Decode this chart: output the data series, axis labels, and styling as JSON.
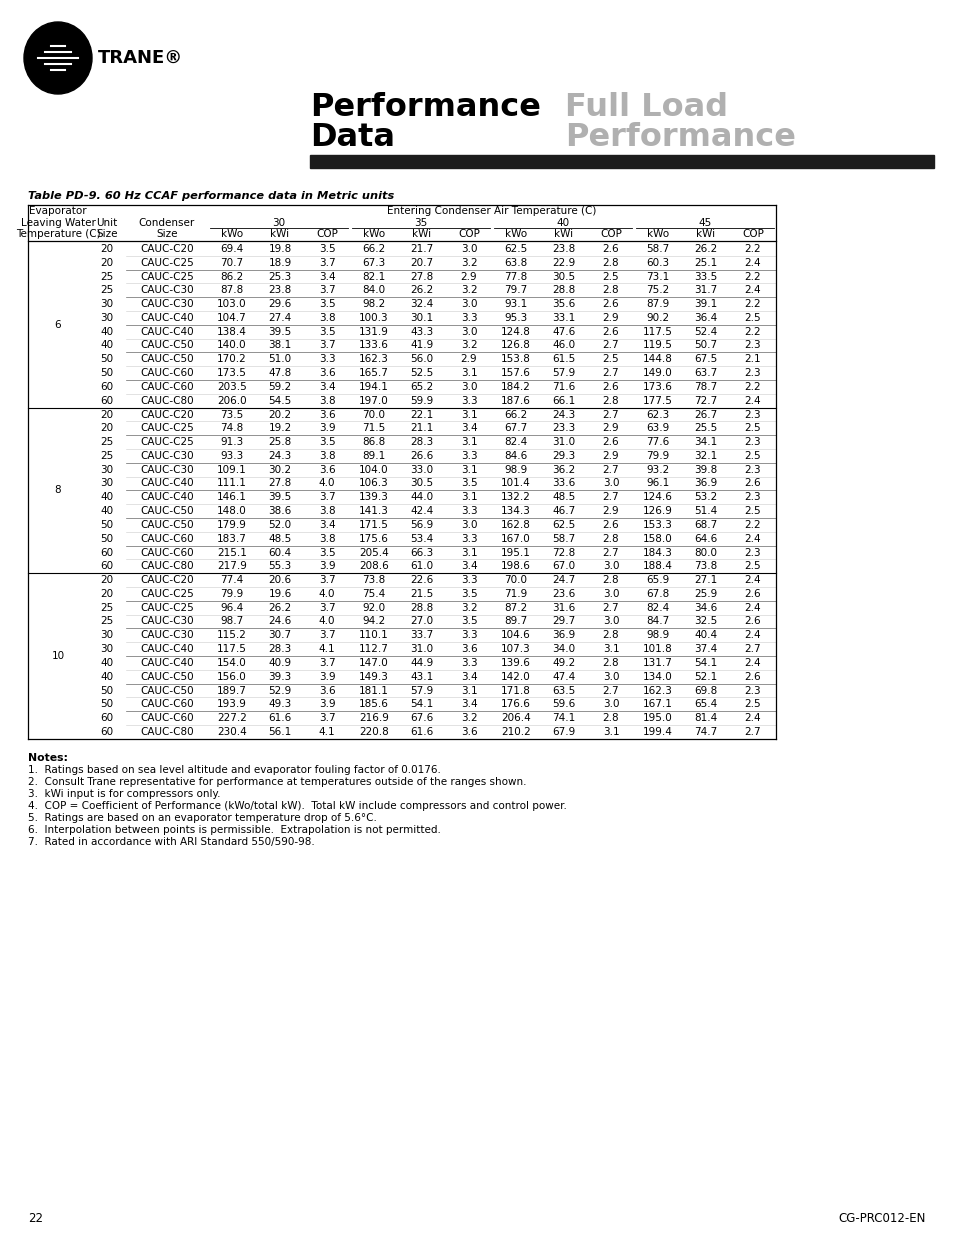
{
  "title_left_1": "Performance",
  "title_left_2": "Data",
  "title_right_1": "Full Load",
  "title_right_2": "Performance",
  "table_title": "Table PD-9. 60 Hz CCAF performance data in Metric units",
  "data": [
    [
      "6",
      "20",
      "CAUC-C20",
      "69.4",
      "19.8",
      "3.5",
      "66.2",
      "21.7",
      "3.0",
      "62.5",
      "23.8",
      "2.6",
      "58.7",
      "26.2",
      "2.2"
    ],
    [
      "",
      "20",
      "CAUC-C25",
      "70.7",
      "18.9",
      "3.7",
      "67.3",
      "20.7",
      "3.2",
      "63.8",
      "22.9",
      "2.8",
      "60.3",
      "25.1",
      "2.4"
    ],
    [
      "",
      "25",
      "CAUC-C25",
      "86.2",
      "25.3",
      "3.4",
      "82.1",
      "27.8",
      "2.9",
      "77.8",
      "30.5",
      "2.5",
      "73.1",
      "33.5",
      "2.2"
    ],
    [
      "",
      "25",
      "CAUC-C30",
      "87.8",
      "23.8",
      "3.7",
      "84.0",
      "26.2",
      "3.2",
      "79.7",
      "28.8",
      "2.8",
      "75.2",
      "31.7",
      "2.4"
    ],
    [
      "",
      "30",
      "CAUC-C30",
      "103.0",
      "29.6",
      "3.5",
      "98.2",
      "32.4",
      "3.0",
      "93.1",
      "35.6",
      "2.6",
      "87.9",
      "39.1",
      "2.2"
    ],
    [
      "",
      "30",
      "CAUC-C40",
      "104.7",
      "27.4",
      "3.8",
      "100.3",
      "30.1",
      "3.3",
      "95.3",
      "33.1",
      "2.9",
      "90.2",
      "36.4",
      "2.5"
    ],
    [
      "",
      "40",
      "CAUC-C40",
      "138.4",
      "39.5",
      "3.5",
      "131.9",
      "43.3",
      "3.0",
      "124.8",
      "47.6",
      "2.6",
      "117.5",
      "52.4",
      "2.2"
    ],
    [
      "",
      "40",
      "CAUC-C50",
      "140.0",
      "38.1",
      "3.7",
      "133.6",
      "41.9",
      "3.2",
      "126.8",
      "46.0",
      "2.7",
      "119.5",
      "50.7",
      "2.3"
    ],
    [
      "",
      "50",
      "CAUC-C50",
      "170.2",
      "51.0",
      "3.3",
      "162.3",
      "56.0",
      "2.9",
      "153.8",
      "61.5",
      "2.5",
      "144.8",
      "67.5",
      "2.1"
    ],
    [
      "",
      "50",
      "CAUC-C60",
      "173.5",
      "47.8",
      "3.6",
      "165.7",
      "52.5",
      "3.1",
      "157.6",
      "57.9",
      "2.7",
      "149.0",
      "63.7",
      "2.3"
    ],
    [
      "",
      "60",
      "CAUC-C60",
      "203.5",
      "59.2",
      "3.4",
      "194.1",
      "65.2",
      "3.0",
      "184.2",
      "71.6",
      "2.6",
      "173.6",
      "78.7",
      "2.2"
    ],
    [
      "",
      "60",
      "CAUC-C80",
      "206.0",
      "54.5",
      "3.8",
      "197.0",
      "59.9",
      "3.3",
      "187.6",
      "66.1",
      "2.8",
      "177.5",
      "72.7",
      "2.4"
    ],
    [
      "8",
      "20",
      "CAUC-C20",
      "73.5",
      "20.2",
      "3.6",
      "70.0",
      "22.1",
      "3.1",
      "66.2",
      "24.3",
      "2.7",
      "62.3",
      "26.7",
      "2.3"
    ],
    [
      "",
      "20",
      "CAUC-C25",
      "74.8",
      "19.2",
      "3.9",
      "71.5",
      "21.1",
      "3.4",
      "67.7",
      "23.3",
      "2.9",
      "63.9",
      "25.5",
      "2.5"
    ],
    [
      "",
      "25",
      "CAUC-C25",
      "91.3",
      "25.8",
      "3.5",
      "86.8",
      "28.3",
      "3.1",
      "82.4",
      "31.0",
      "2.6",
      "77.6",
      "34.1",
      "2.3"
    ],
    [
      "",
      "25",
      "CAUC-C30",
      "93.3",
      "24.3",
      "3.8",
      "89.1",
      "26.6",
      "3.3",
      "84.6",
      "29.3",
      "2.9",
      "79.9",
      "32.1",
      "2.5"
    ],
    [
      "",
      "30",
      "CAUC-C30",
      "109.1",
      "30.2",
      "3.6",
      "104.0",
      "33.0",
      "3.1",
      "98.9",
      "36.2",
      "2.7",
      "93.2",
      "39.8",
      "2.3"
    ],
    [
      "",
      "30",
      "CAUC-C40",
      "111.1",
      "27.8",
      "4.0",
      "106.3",
      "30.5",
      "3.5",
      "101.4",
      "33.6",
      "3.0",
      "96.1",
      "36.9",
      "2.6"
    ],
    [
      "",
      "40",
      "CAUC-C40",
      "146.1",
      "39.5",
      "3.7",
      "139.3",
      "44.0",
      "3.1",
      "132.2",
      "48.5",
      "2.7",
      "124.6",
      "53.2",
      "2.3"
    ],
    [
      "",
      "40",
      "CAUC-C50",
      "148.0",
      "38.6",
      "3.8",
      "141.3",
      "42.4",
      "3.3",
      "134.3",
      "46.7",
      "2.9",
      "126.9",
      "51.4",
      "2.5"
    ],
    [
      "",
      "50",
      "CAUC-C50",
      "179.9",
      "52.0",
      "3.4",
      "171.5",
      "56.9",
      "3.0",
      "162.8",
      "62.5",
      "2.6",
      "153.3",
      "68.7",
      "2.2"
    ],
    [
      "",
      "50",
      "CAUC-C60",
      "183.7",
      "48.5",
      "3.8",
      "175.6",
      "53.4",
      "3.3",
      "167.0",
      "58.7",
      "2.8",
      "158.0",
      "64.6",
      "2.4"
    ],
    [
      "",
      "60",
      "CAUC-C60",
      "215.1",
      "60.4",
      "3.5",
      "205.4",
      "66.3",
      "3.1",
      "195.1",
      "72.8",
      "2.7",
      "184.3",
      "80.0",
      "2.3"
    ],
    [
      "",
      "60",
      "CAUC-C80",
      "217.9",
      "55.3",
      "3.9",
      "208.6",
      "61.0",
      "3.4",
      "198.6",
      "67.0",
      "3.0",
      "188.4",
      "73.8",
      "2.5"
    ],
    [
      "10",
      "20",
      "CAUC-C20",
      "77.4",
      "20.6",
      "3.7",
      "73.8",
      "22.6",
      "3.3",
      "70.0",
      "24.7",
      "2.8",
      "65.9",
      "27.1",
      "2.4"
    ],
    [
      "",
      "20",
      "CAUC-C25",
      "79.9",
      "19.6",
      "4.0",
      "75.4",
      "21.5",
      "3.5",
      "71.9",
      "23.6",
      "3.0",
      "67.8",
      "25.9",
      "2.6"
    ],
    [
      "",
      "25",
      "CAUC-C25",
      "96.4",
      "26.2",
      "3.7",
      "92.0",
      "28.8",
      "3.2",
      "87.2",
      "31.6",
      "2.7",
      "82.4",
      "34.6",
      "2.4"
    ],
    [
      "",
      "25",
      "CAUC-C30",
      "98.7",
      "24.6",
      "4.0",
      "94.2",
      "27.0",
      "3.5",
      "89.7",
      "29.7",
      "3.0",
      "84.7",
      "32.5",
      "2.6"
    ],
    [
      "",
      "30",
      "CAUC-C30",
      "115.2",
      "30.7",
      "3.7",
      "110.1",
      "33.7",
      "3.3",
      "104.6",
      "36.9",
      "2.8",
      "98.9",
      "40.4",
      "2.4"
    ],
    [
      "",
      "30",
      "CAUC-C40",
      "117.5",
      "28.3",
      "4.1",
      "112.7",
      "31.0",
      "3.6",
      "107.3",
      "34.0",
      "3.1",
      "101.8",
      "37.4",
      "2.7"
    ],
    [
      "",
      "40",
      "CAUC-C40",
      "154.0",
      "40.9",
      "3.7",
      "147.0",
      "44.9",
      "3.3",
      "139.6",
      "49.2",
      "2.8",
      "131.7",
      "54.1",
      "2.4"
    ],
    [
      "",
      "40",
      "CAUC-C50",
      "156.0",
      "39.3",
      "3.9",
      "149.3",
      "43.1",
      "3.4",
      "142.0",
      "47.4",
      "3.0",
      "134.0",
      "52.1",
      "2.6"
    ],
    [
      "",
      "50",
      "CAUC-C50",
      "189.7",
      "52.9",
      "3.6",
      "181.1",
      "57.9",
      "3.1",
      "171.8",
      "63.5",
      "2.7",
      "162.3",
      "69.8",
      "2.3"
    ],
    [
      "",
      "50",
      "CAUC-C60",
      "193.9",
      "49.3",
      "3.9",
      "185.6",
      "54.1",
      "3.4",
      "176.6",
      "59.6",
      "3.0",
      "167.1",
      "65.4",
      "2.5"
    ],
    [
      "",
      "60",
      "CAUC-C60",
      "227.2",
      "61.6",
      "3.7",
      "216.9",
      "67.6",
      "3.2",
      "206.4",
      "74.1",
      "2.8",
      "195.0",
      "81.4",
      "2.4"
    ],
    [
      "",
      "60",
      "CAUC-C80",
      "230.4",
      "56.1",
      "4.1",
      "220.8",
      "61.6",
      "3.6",
      "210.2",
      "67.9",
      "3.1",
      "199.4",
      "74.7",
      "2.7"
    ]
  ],
  "notes": [
    "Notes:",
    "1.  Ratings based on sea level altitude and evaporator fouling factor of 0.0176.",
    "2.  Consult Trane representative for performance at temperatures outside of the ranges shown.",
    "3.  kWi input is for compressors only.",
    "4.  COP = Coefficient of Performance (kWo/total kW).  Total kW include compressors and control power.",
    "5.  Ratings are based on an evaporator temperature drop of 5.6°C.",
    "6.  Interpolation between points is permissible.  Extrapolation is not permitted.",
    "7.  Rated in accordance with ARI Standard 550/590-98."
  ],
  "page_left": "22",
  "page_right": "CG-PRC012-EN"
}
